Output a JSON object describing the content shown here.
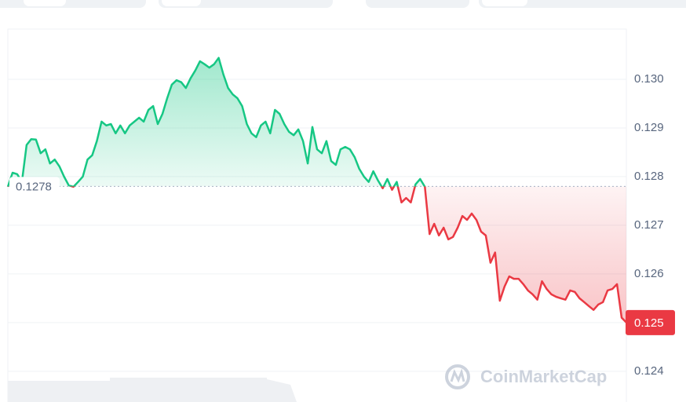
{
  "chart_data": {
    "type": "line",
    "series": [
      {
        "name": null,
        "color_up": "#16c784",
        "color_down": "#ea3943",
        "values": [
          0.12779,
          0.12808,
          0.12805,
          0.12789,
          0.12865,
          0.12877,
          0.12876,
          0.12848,
          0.12856,
          0.12827,
          0.12835,
          0.12821,
          0.128,
          0.12782,
          0.12779,
          0.12789,
          0.128,
          0.12835,
          0.12844,
          0.12873,
          0.12913,
          0.12905,
          0.12908,
          0.12889,
          0.12905,
          0.12889,
          0.12905,
          0.12913,
          0.12921,
          0.12913,
          0.12937,
          0.12945,
          0.12908,
          0.12929,
          0.12961,
          0.12989,
          0.12998,
          0.12994,
          0.12982,
          0.13002,
          0.13018,
          0.13037,
          0.13031,
          0.13024,
          0.13031,
          0.13044,
          0.1301,
          0.12982,
          0.12969,
          0.12961,
          0.12945,
          0.12908,
          0.12889,
          0.12881,
          0.12905,
          0.12913,
          0.12889,
          0.12937,
          0.12929,
          0.12908,
          0.12892,
          0.12885,
          0.12897,
          0.12873,
          0.12827,
          0.12902,
          0.12856,
          0.12848,
          0.12873,
          0.12832,
          0.12824,
          0.12856,
          0.12861,
          0.12856,
          0.1284,
          0.12816,
          0.128,
          0.12789,
          0.12811,
          0.12792,
          0.12776,
          0.12795,
          0.12773,
          0.12789,
          0.12747,
          0.12756,
          0.12747,
          0.12784,
          0.12795,
          0.12779,
          0.12682,
          0.12703,
          0.12679,
          0.12695,
          0.12671,
          0.12676,
          0.12695,
          0.12719,
          0.12711,
          0.12724,
          0.12711,
          0.12687,
          0.12679,
          0.12623,
          0.12644,
          0.12545,
          0.12574,
          0.12595,
          0.1259,
          0.1259,
          0.12579,
          0.12566,
          0.12558,
          0.12547,
          0.12585,
          0.12569,
          0.12558,
          0.12553,
          0.1255,
          0.12547,
          0.12566,
          0.12563,
          0.1255,
          0.12542,
          0.12534,
          0.12526,
          0.12537,
          0.12542,
          0.12566,
          0.12569,
          0.12579,
          0.1251,
          0.125
        ]
      }
    ],
    "ylim": [
      0.1234,
      0.131
    ],
    "yticks": [
      {
        "value": 0.13,
        "label": "0.130"
      },
      0.129,
      0.128,
      0.127,
      0.126,
      0.125,
      0.124
    ],
    "grid": true,
    "baseline": 0.1278,
    "current_price": 0.125,
    "watermark": "CoinMarketCap"
  }
}
